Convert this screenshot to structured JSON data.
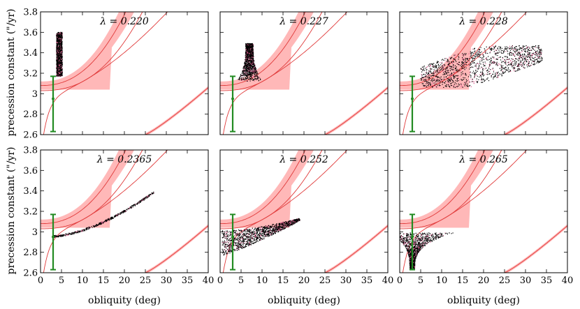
{
  "figure": {
    "ylabel": "precession constant (\"/yr)",
    "xlabel": "obliquity (deg)"
  },
  "colors": {
    "band_fill": "#ffb8b8",
    "curve_line": "#e03a3a",
    "error_bar": "#228b22",
    "simulation_points": "#000000"
  },
  "chart_data": [
    {
      "type": "scatter",
      "label": "λ = 0.220",
      "xlim": [
        0,
        40
      ],
      "ylim": [
        2.6,
        3.8
      ],
      "xticks": [
        0,
        5,
        10,
        15,
        20,
        25,
        30,
        35,
        40
      ],
      "yticks": [
        2.6,
        2.8,
        3,
        3.2,
        3.4,
        3.6,
        3.8
      ],
      "error_bar": {
        "x": 3,
        "y": 2.95,
        "ylow": 2.63,
        "yhigh": 3.17
      },
      "points_region": {
        "shape": "column",
        "obliquity_min": 3.8,
        "obliquity_max": 5.2,
        "constant_min": 3.17,
        "constant_max": 3.6
      }
    },
    {
      "type": "scatter",
      "label": "λ = 0.227",
      "xlim": [
        0,
        40
      ],
      "ylim": [
        2.6,
        3.8
      ],
      "xticks": [
        0,
        5,
        10,
        15,
        20,
        25,
        30,
        35,
        40
      ],
      "yticks": [
        2.6,
        2.8,
        3,
        3.2,
        3.4,
        3.6,
        3.8
      ],
      "error_bar": {
        "x": 3,
        "y": 2.95,
        "ylow": 2.63,
        "yhigh": 3.17
      },
      "points_region": {
        "shape": "flared-column",
        "obliquity_min": 4,
        "obliquity_max": 10,
        "constant_min": 3.12,
        "constant_max": 3.49
      }
    },
    {
      "type": "scatter",
      "label": "λ = 0.228",
      "xlim": [
        0,
        40
      ],
      "ylim": [
        2.6,
        3.8
      ],
      "xticks": [
        0,
        5,
        10,
        15,
        20,
        25,
        30,
        35,
        40
      ],
      "yticks": [
        2.6,
        2.8,
        3,
        3.2,
        3.4,
        3.6,
        3.8
      ],
      "error_bar": {
        "x": 3,
        "y": 2.95,
        "ylow": 2.63,
        "yhigh": 3.17
      },
      "points_region": {
        "shape": "parallelogram",
        "obliquity_min": 5,
        "obliquity_max": 34,
        "constant_min": 3.06,
        "constant_max": 3.47
      }
    },
    {
      "type": "scatter",
      "label": "λ = 0.2365",
      "xlim": [
        0,
        40
      ],
      "ylim": [
        2.6,
        3.8
      ],
      "xticks": [
        0,
        5,
        10,
        15,
        20,
        25,
        30,
        35,
        40
      ],
      "yticks": [
        2.6,
        2.8,
        3,
        3.2,
        3.4,
        3.6,
        3.8
      ],
      "error_bar": {
        "x": 3,
        "y": 2.95,
        "ylow": 2.63,
        "yhigh": 3.17
      },
      "points_region": {
        "shape": "thin-band",
        "obliquity_min": 3,
        "obliquity_max": 27,
        "constant_min": 2.95,
        "constant_max": 3.35
      }
    },
    {
      "type": "scatter",
      "label": "λ = 0.252",
      "xlim": [
        0,
        40
      ],
      "ylim": [
        2.6,
        3.8
      ],
      "xticks": [
        0,
        5,
        10,
        15,
        20,
        25,
        30,
        35,
        40
      ],
      "yticks": [
        2.6,
        2.8,
        3,
        3.2,
        3.4,
        3.6,
        3.8
      ],
      "error_bar": {
        "x": 3,
        "y": 2.95,
        "ylow": 2.63,
        "yhigh": 3.17
      },
      "points_region": {
        "shape": "fan",
        "obliquity_min": 0.5,
        "obliquity_max": 19,
        "constant_min": 2.75,
        "constant_max": 3.15
      }
    },
    {
      "type": "scatter",
      "label": "λ = 0.265",
      "xlim": [
        0,
        40
      ],
      "ylim": [
        2.6,
        3.8
      ],
      "xticks": [
        0,
        5,
        10,
        15,
        20,
        25,
        30,
        35,
        40
      ],
      "yticks": [
        2.6,
        2.8,
        3,
        3.2,
        3.4,
        3.6,
        3.8
      ],
      "error_bar": {
        "x": 3,
        "y": 2.95,
        "ylow": 2.63,
        "yhigh": 3.17
      },
      "points_region": {
        "shape": "funnel",
        "obliquity_min": 0.5,
        "obliquity_max": 12,
        "constant_min": 2.64,
        "constant_max": 2.99
      }
    }
  ]
}
